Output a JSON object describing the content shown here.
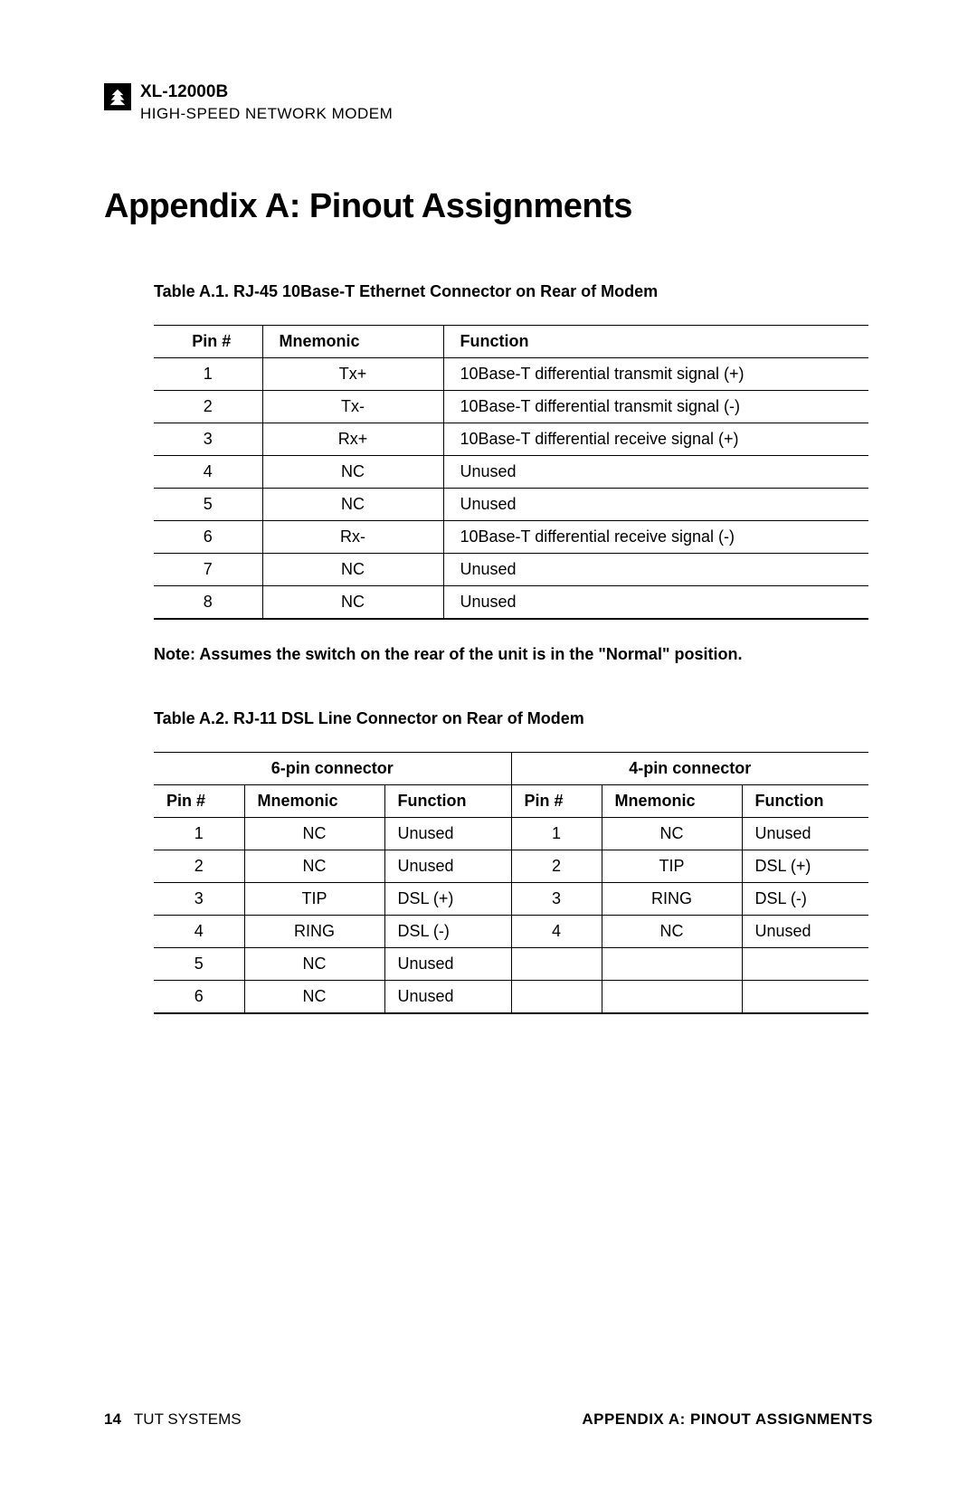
{
  "header": {
    "model": "XL-12000B",
    "subtitle": "HIGH-SPEED NETWORK MODEM"
  },
  "title": "Appendix A:  Pinout Assignments",
  "table1": {
    "caption": "Table A.1.  RJ-45 10Base-T Ethernet Connector on Rear of Modem",
    "columns": [
      "Pin #",
      "Mnemonic",
      "Function"
    ],
    "rows": [
      [
        "1",
        "Tx+",
        "10Base-T differential transmit signal (+)"
      ],
      [
        "2",
        "Tx-",
        "10Base-T differential transmit signal (-)"
      ],
      [
        "3",
        "Rx+",
        "10Base-T differential receive signal (+)"
      ],
      [
        "4",
        "NC",
        "Unused"
      ],
      [
        "5",
        "NC",
        "Unused"
      ],
      [
        "6",
        "Rx-",
        "10Base-T differential receive signal (-)"
      ],
      [
        "7",
        "NC",
        "Unused"
      ],
      [
        "8",
        "NC",
        "Unused"
      ]
    ]
  },
  "note": "Note: Assumes the switch on the rear of the unit is in the \"Normal\" position.",
  "table2": {
    "caption": "Table A.2.  RJ-11 DSL Line Connector on Rear of Modem",
    "group_left": "6-pin connector",
    "group_right": "4-pin connector",
    "columns": [
      "Pin #",
      "Mnemonic",
      "Function",
      "Pin #",
      "Mnemonic",
      "Function"
    ],
    "rows": [
      [
        "1",
        "NC",
        "Unused",
        "1",
        "NC",
        "Unused"
      ],
      [
        "2",
        "NC",
        "Unused",
        "2",
        "TIP",
        "DSL (+)"
      ],
      [
        "3",
        "TIP",
        "DSL (+)",
        "3",
        "RING",
        "DSL (-)"
      ],
      [
        "4",
        "RING",
        "DSL (-)",
        "4",
        "NC",
        "Unused"
      ],
      [
        "5",
        "NC",
        "Unused",
        "",
        "",
        ""
      ],
      [
        "6",
        "NC",
        "Unused",
        "",
        "",
        ""
      ]
    ]
  },
  "footer": {
    "page": "14",
    "company": "TUT SYSTEMS",
    "section": "APPENDIX A: PINOUT ASSIGNMENTS"
  }
}
